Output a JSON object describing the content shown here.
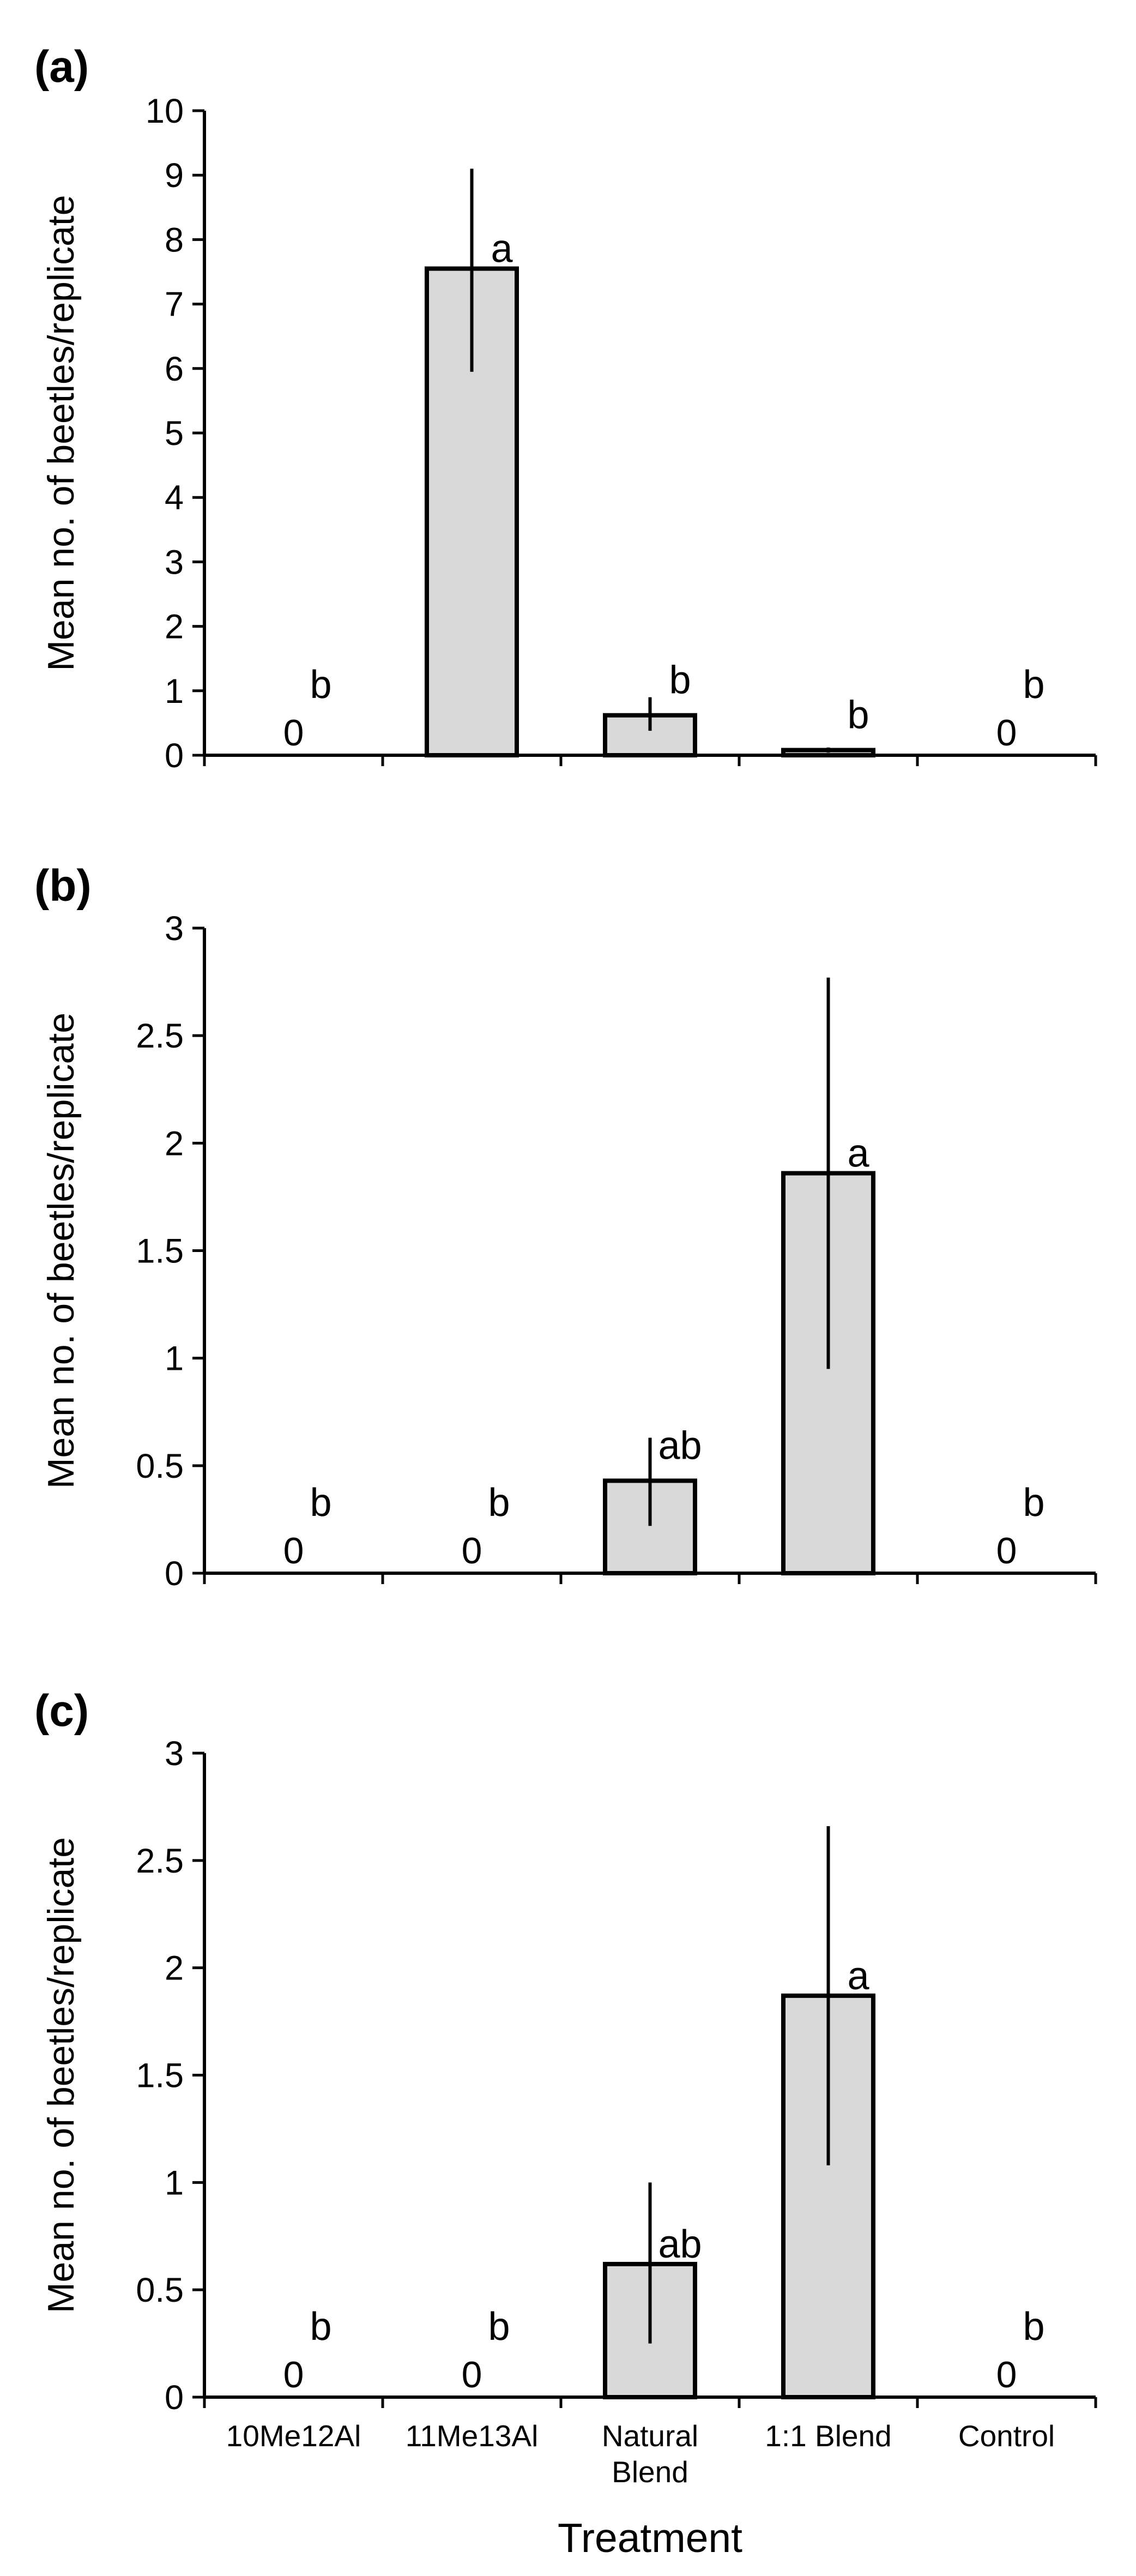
{
  "chart_data": [
    {
      "type": "bar",
      "panel_label": "(a)",
      "ylabel": "Mean no. of beetles/replicate",
      "ylim": [
        0,
        10
      ],
      "yticks": [
        "0",
        "1",
        "2",
        "3",
        "4",
        "5",
        "6",
        "7",
        "8",
        "9",
        "10"
      ],
      "categories": [
        "10Me12Al",
        "11Me13Al",
        "Natural Blend",
        "1:1 Blend",
        "Control"
      ],
      "values": [
        0,
        7.55,
        0.62,
        0.08,
        0
      ],
      "error_low": [
        0,
        5.95,
        0.38,
        0.04,
        0
      ],
      "error_high": [
        0,
        9.1,
        0.9,
        0.12,
        0
      ],
      "letters": [
        "b",
        "a",
        "b",
        "b",
        "b"
      ],
      "zero_labels": [
        "0",
        "",
        "",
        "",
        "0"
      ]
    },
    {
      "type": "bar",
      "panel_label": "(b)",
      "ylabel": "Mean no. of beetles/replicate",
      "ylim": [
        0,
        3
      ],
      "yticks": [
        "0",
        "0.5",
        "1",
        "1.5",
        "2",
        "2.5",
        "3"
      ],
      "categories": [
        "10Me12Al",
        "11Me13Al",
        "Natural Blend",
        "1:1 Blend",
        "Control"
      ],
      "values": [
        0,
        0,
        0.43,
        1.86,
        0
      ],
      "error_low": [
        0,
        0,
        0.22,
        0.95,
        0
      ],
      "error_high": [
        0,
        0,
        0.63,
        2.77,
        0
      ],
      "letters": [
        "b",
        "b",
        "ab",
        "a",
        "b"
      ],
      "zero_labels": [
        "0",
        "0",
        "",
        "",
        "0"
      ]
    },
    {
      "type": "bar",
      "panel_label": "(c)",
      "ylabel": "Mean no. of beetles/replicate",
      "ylim": [
        0,
        3
      ],
      "yticks": [
        "0",
        "0.5",
        "1",
        "1.5",
        "2",
        "2.5",
        "3"
      ],
      "categories": [
        "10Me12Al",
        "11Me13Al",
        "Natural Blend",
        "1:1 Blend",
        "Control"
      ],
      "category_labels": [
        [
          "10Me12Al"
        ],
        [
          "11Me13Al"
        ],
        [
          "Natural",
          "Blend"
        ],
        [
          "1:1 Blend"
        ],
        [
          "Control"
        ]
      ],
      "values": [
        0,
        0,
        0.62,
        1.87,
        0
      ],
      "error_low": [
        0,
        0,
        0.25,
        1.08,
        0
      ],
      "error_high": [
        0,
        0,
        1.0,
        2.66,
        0
      ],
      "letters": [
        "b",
        "b",
        "ab",
        "a",
        "b"
      ],
      "zero_labels": [
        "0",
        "0",
        "",
        "",
        "0"
      ],
      "xlabel": "Treatment"
    }
  ],
  "colors": {
    "bar_fill": "#d9d9d9",
    "stroke": "#000000",
    "background": "#ffffff"
  }
}
